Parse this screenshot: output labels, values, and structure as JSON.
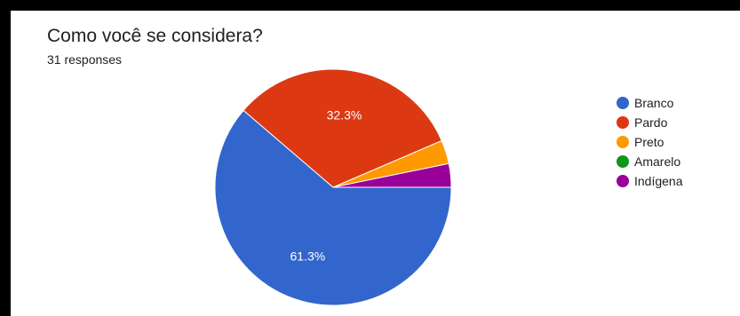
{
  "header": {
    "title": "Como você se considera?",
    "responses": "31 responses"
  },
  "chart_data": {
    "type": "pie",
    "title": "Como você se considera?",
    "categories": [
      "Branco",
      "Pardo",
      "Preto",
      "Amarelo",
      "Indígena"
    ],
    "values": [
      19,
      10,
      1,
      0,
      1
    ],
    "colors": [
      "#3366cc",
      "#dc3912",
      "#ff9900",
      "#109618",
      "#990099"
    ],
    "data_labels": [
      "61.3%",
      "32.3%",
      "",
      "",
      ""
    ],
    "legend_position": "right"
  }
}
